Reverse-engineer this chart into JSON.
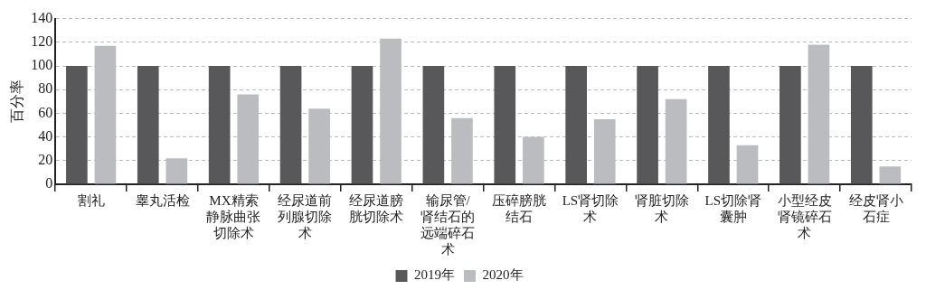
{
  "chart_data": {
    "type": "bar",
    "ylabel": "百分率",
    "categories": [
      "割礼",
      "睾丸活检",
      "MX精索静脉曲张切除术",
      "经尿道前列腺切除术",
      "经尿道膀胱切除术",
      "输尿管/肾结石的远端碎石术",
      "压碎膀胱结石",
      "LS肾切除术",
      "肾脏切除术",
      "LS切除肾囊肿",
      "小型经皮肾镜碎石术",
      "经皮肾小石症"
    ],
    "series": [
      {
        "name": "2019年",
        "color": "#58585a",
        "values": [
          100,
          100,
          100,
          100,
          100,
          100,
          100,
          100,
          100,
          100,
          100,
          100
        ]
      },
      {
        "name": "2020年",
        "color": "#bbbcc0",
        "values": [
          117,
          22,
          76,
          64,
          123,
          56,
          40,
          55,
          72,
          33,
          118,
          15
        ]
      }
    ],
    "ylim": [
      0,
      140
    ],
    "yticks": [
      0,
      20,
      40,
      60,
      80,
      100,
      120,
      140
    ],
    "grid": "y",
    "legend": "bottom"
  }
}
